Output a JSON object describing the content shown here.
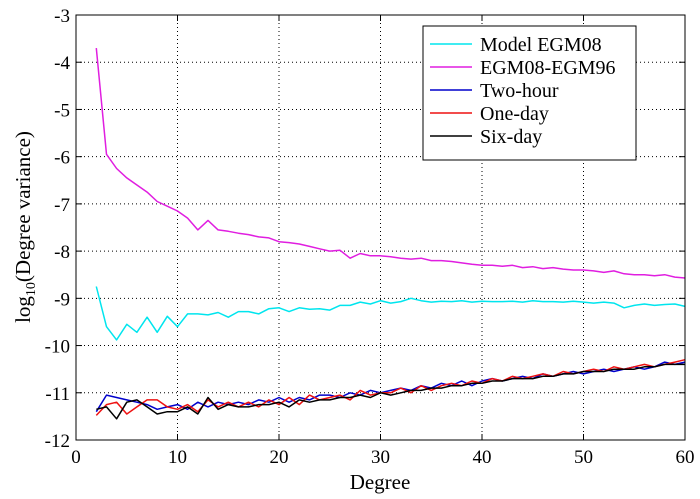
{
  "chart_data": {
    "type": "line",
    "title": "",
    "xlabel": "Degree",
    "ylabel": "log10(Degree variance)",
    "ylabel_main": "log",
    "ylabel_sub": "10",
    "ylabel_rest": "(Degree variance)",
    "xlim": [
      0,
      60
    ],
    "ylim": [
      -12,
      -3
    ],
    "xticks": [
      0,
      10,
      20,
      30,
      40,
      50,
      60
    ],
    "yticks": [
      -3,
      -4,
      -5,
      -6,
      -7,
      -8,
      -9,
      -10,
      -11,
      -12
    ],
    "grid": true,
    "legend_position": "top-right",
    "x": [
      2,
      3,
      4,
      5,
      6,
      7,
      8,
      9,
      10,
      11,
      12,
      13,
      14,
      15,
      16,
      17,
      18,
      19,
      20,
      21,
      22,
      23,
      24,
      25,
      26,
      27,
      28,
      29,
      30,
      31,
      32,
      33,
      34,
      35,
      36,
      37,
      38,
      39,
      40,
      41,
      42,
      43,
      44,
      45,
      46,
      47,
      48,
      49,
      50,
      51,
      52,
      53,
      54,
      55,
      56,
      57,
      58,
      59,
      60
    ],
    "series": [
      {
        "name": "Model EGM08",
        "color": "#00e5ee",
        "values": [
          -8.75,
          -9.6,
          -9.88,
          -9.55,
          -9.72,
          -9.4,
          -9.72,
          -9.38,
          -9.6,
          -9.33,
          -9.33,
          -9.35,
          -9.3,
          -9.4,
          -9.28,
          -9.28,
          -9.33,
          -9.22,
          -9.2,
          -9.28,
          -9.2,
          -9.23,
          -9.22,
          -9.25,
          -9.15,
          -9.15,
          -9.08,
          -9.12,
          -9.05,
          -9.1,
          -9.07,
          -9.0,
          -9.05,
          -9.08,
          -9.06,
          -9.07,
          -9.05,
          -9.08,
          -9.06,
          -9.07,
          -9.07,
          -9.06,
          -9.08,
          -9.05,
          -9.07,
          -9.07,
          -9.08,
          -9.06,
          -9.08,
          -9.1,
          -9.08,
          -9.1,
          -9.2,
          -9.15,
          -9.12,
          -9.15,
          -9.13,
          -9.12,
          -9.17
        ]
      },
      {
        "name": "EGM08-EGM96",
        "color": "#e01ee0",
        "values": [
          -3.7,
          -5.95,
          -6.25,
          -6.45,
          -6.6,
          -6.75,
          -6.95,
          -7.05,
          -7.15,
          -7.3,
          -7.55,
          -7.35,
          -7.55,
          -7.58,
          -7.62,
          -7.65,
          -7.7,
          -7.72,
          -7.8,
          -7.82,
          -7.85,
          -7.9,
          -7.95,
          -8.0,
          -7.98,
          -8.15,
          -8.05,
          -8.1,
          -8.1,
          -8.12,
          -8.15,
          -8.17,
          -8.15,
          -8.2,
          -8.2,
          -8.22,
          -8.25,
          -8.28,
          -8.3,
          -8.3,
          -8.32,
          -8.3,
          -8.35,
          -8.33,
          -8.37,
          -8.35,
          -8.38,
          -8.4,
          -8.4,
          -8.42,
          -8.45,
          -8.42,
          -8.48,
          -8.5,
          -8.5,
          -8.52,
          -8.5,
          -8.55,
          -8.57
        ]
      },
      {
        "name": "Two-hour",
        "color": "#0000cc",
        "values": [
          -11.4,
          -11.05,
          -11.1,
          -11.15,
          -11.2,
          -11.25,
          -11.35,
          -11.3,
          -11.25,
          -11.35,
          -11.2,
          -11.3,
          -11.2,
          -11.25,
          -11.2,
          -11.25,
          -11.15,
          -11.2,
          -11.1,
          -11.2,
          -11.1,
          -11.15,
          -11.05,
          -11.05,
          -11.1,
          -11.0,
          -11.05,
          -10.95,
          -11.0,
          -10.95,
          -10.9,
          -10.95,
          -10.85,
          -10.9,
          -10.8,
          -10.85,
          -10.75,
          -10.85,
          -10.75,
          -10.7,
          -10.75,
          -10.7,
          -10.65,
          -10.7,
          -10.6,
          -10.65,
          -10.6,
          -10.55,
          -10.6,
          -10.55,
          -10.5,
          -10.55,
          -10.5,
          -10.45,
          -10.5,
          -10.45,
          -10.35,
          -10.4,
          -10.35
        ]
      },
      {
        "name": "One-day",
        "color": "#ee1111",
        "values": [
          -11.48,
          -11.25,
          -11.2,
          -11.45,
          -11.3,
          -11.15,
          -11.15,
          -11.3,
          -11.35,
          -11.25,
          -11.4,
          -11.15,
          -11.3,
          -11.2,
          -11.3,
          -11.2,
          -11.3,
          -11.15,
          -11.25,
          -11.1,
          -11.25,
          -11.05,
          -11.15,
          -11.1,
          -11.05,
          -11.15,
          -10.95,
          -11.05,
          -11.0,
          -11.0,
          -10.9,
          -11.0,
          -10.85,
          -10.95,
          -10.85,
          -10.8,
          -10.85,
          -10.75,
          -10.8,
          -10.7,
          -10.75,
          -10.65,
          -10.7,
          -10.65,
          -10.6,
          -10.65,
          -10.55,
          -10.6,
          -10.55,
          -10.5,
          -10.55,
          -10.45,
          -10.5,
          -10.45,
          -10.4,
          -10.45,
          -10.4,
          -10.35,
          -10.3
        ]
      },
      {
        "name": "Six-day",
        "color": "#000000",
        "values": [
          -11.35,
          -11.3,
          -11.55,
          -11.2,
          -11.15,
          -11.3,
          -11.45,
          -11.4,
          -11.4,
          -11.3,
          -11.45,
          -11.1,
          -11.35,
          -11.25,
          -11.3,
          -11.3,
          -11.25,
          -11.25,
          -11.2,
          -11.3,
          -11.15,
          -11.2,
          -11.15,
          -11.15,
          -11.1,
          -11.1,
          -11.05,
          -11.1,
          -11.0,
          -11.05,
          -11.0,
          -10.95,
          -10.95,
          -10.9,
          -10.9,
          -10.85,
          -10.85,
          -10.8,
          -10.8,
          -10.75,
          -10.75,
          -10.7,
          -10.7,
          -10.7,
          -10.65,
          -10.65,
          -10.6,
          -10.6,
          -10.55,
          -10.55,
          -10.55,
          -10.5,
          -10.5,
          -10.5,
          -10.45,
          -10.45,
          -10.4,
          -10.4,
          -10.4
        ]
      }
    ]
  }
}
